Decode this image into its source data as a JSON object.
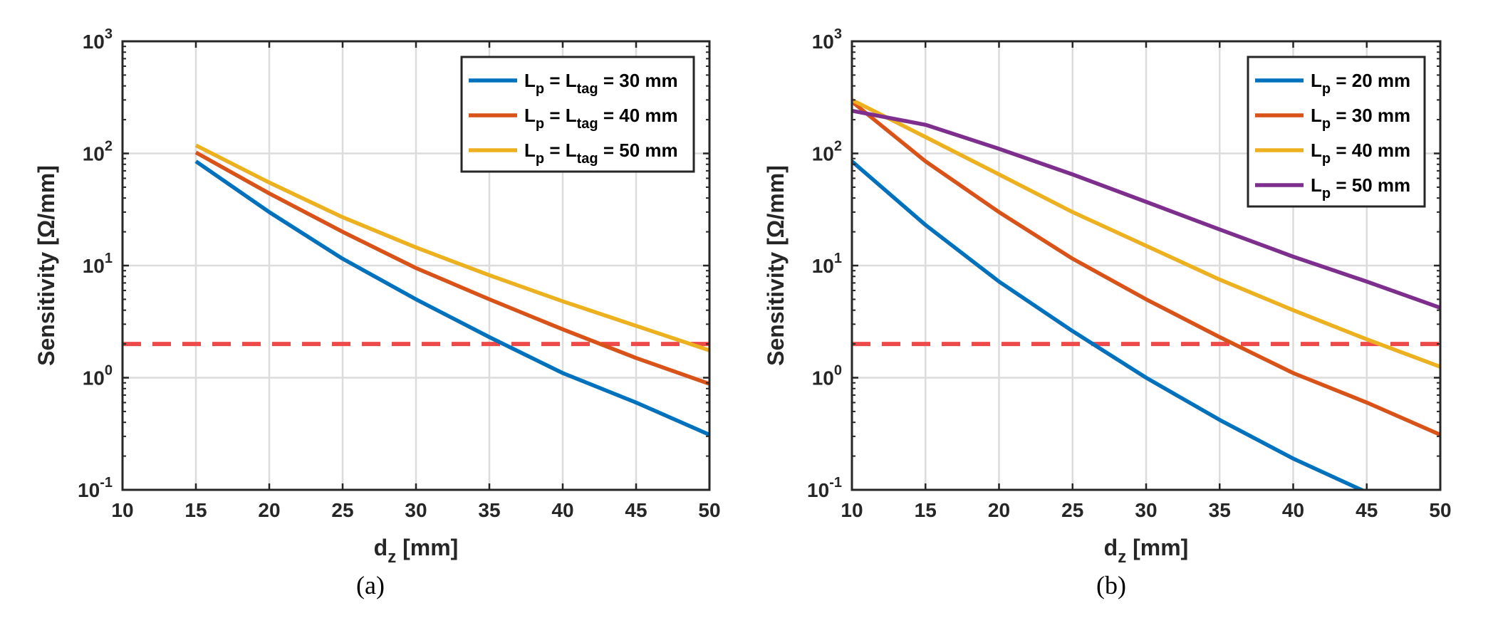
{
  "chart_data": [
    {
      "type": "line",
      "caption": "(a)",
      "xlabel_main": "d",
      "xlabel_sub": "z",
      "xlabel_rest": " [mm]",
      "ylabel": "Sensitivity [Ω/mm]",
      "xlim": [
        10,
        50
      ],
      "ylim": [
        0.1,
        1000
      ],
      "yscale": "log",
      "grid": true,
      "legend_position": "top-right",
      "xticks": [
        "10",
        "15",
        "20",
        "25",
        "30",
        "35",
        "40",
        "45",
        "50"
      ],
      "ytick_base": "10",
      "yticks_exp": [
        "-1",
        "0",
        "1",
        "2",
        "3"
      ],
      "threshold": 2,
      "threshold_color": "#ef4a4a",
      "x": [
        15,
        20,
        25,
        30,
        35,
        40,
        45,
        50
      ],
      "series": [
        {
          "name": "L_p = L_tag = 30 mm",
          "label": {
            "a": "L",
            "as": "p",
            "b": " = L",
            "bs": "tag",
            "c": " = 30 mm"
          },
          "color": "#0072bd",
          "values": [
            85,
            30,
            11.5,
            5,
            2.3,
            1.1,
            0.6,
            0.31
          ]
        },
        {
          "name": "L_p = L_tag = 40 mm",
          "label": {
            "a": "L",
            "as": "p",
            "b": " = L",
            "bs": "tag",
            "c": " = 40 mm"
          },
          "color": "#d95319",
          "values": [
            102,
            44,
            20,
            9.5,
            5,
            2.7,
            1.5,
            0.88
          ]
        },
        {
          "name": "L_p = L_tag = 50 mm",
          "label": {
            "a": "L",
            "as": "p",
            "b": " = L",
            "bs": "tag",
            "c": " = 50 mm"
          },
          "color": "#edb120",
          "values": [
            118,
            55,
            27,
            14.5,
            8.2,
            4.8,
            2.9,
            1.75
          ]
        }
      ]
    },
    {
      "type": "line",
      "caption": "(b)",
      "xlabel_main": "d",
      "xlabel_sub": "z",
      "xlabel_rest": " [mm]",
      "ylabel": "Sensitivity [Ω/mm]",
      "xlim": [
        10,
        50
      ],
      "ylim": [
        0.1,
        1000
      ],
      "yscale": "log",
      "grid": true,
      "legend_position": "top-right",
      "xticks": [
        "10",
        "15",
        "20",
        "25",
        "30",
        "35",
        "40",
        "45",
        "50"
      ],
      "ytick_base": "10",
      "yticks_exp": [
        "-1",
        "0",
        "1",
        "2",
        "3"
      ],
      "threshold": 2,
      "threshold_color": "#ef4a4a",
      "x": [
        10,
        15,
        20,
        25,
        30,
        35,
        40,
        45,
        50
      ],
      "series": [
        {
          "name": "L_p = 20 mm",
          "label": {
            "a": "L",
            "as": "p",
            "b": " = 20 mm",
            "bs": "",
            "c": ""
          },
          "color": "#0072bd",
          "values": [
            85,
            23,
            7.2,
            2.6,
            1.0,
            0.42,
            0.19,
            0.095,
            null
          ]
        },
        {
          "name": "L_p = 30 mm",
          "label": {
            "a": "L",
            "as": "p",
            "b": " = 30 mm",
            "bs": "",
            "c": ""
          },
          "color": "#d95319",
          "values": [
            290,
            85,
            30,
            11.5,
            5,
            2.3,
            1.1,
            0.6,
            0.31
          ]
        },
        {
          "name": "L_p = 40 mm",
          "label": {
            "a": "L",
            "as": "p",
            "b": " = 40 mm",
            "bs": "",
            "c": ""
          },
          "color": "#edb120",
          "values": [
            300,
            140,
            65,
            30,
            15,
            7.5,
            4,
            2.2,
            1.25
          ]
        },
        {
          "name": "L_p = 50 mm",
          "label": {
            "a": "L",
            "as": "p",
            "b": " = 50 mm",
            "bs": "",
            "c": ""
          },
          "color": "#7e2f8e",
          "values": [
            240,
            180,
            110,
            65,
            37,
            21,
            12,
            7.2,
            4.2
          ]
        }
      ]
    }
  ]
}
